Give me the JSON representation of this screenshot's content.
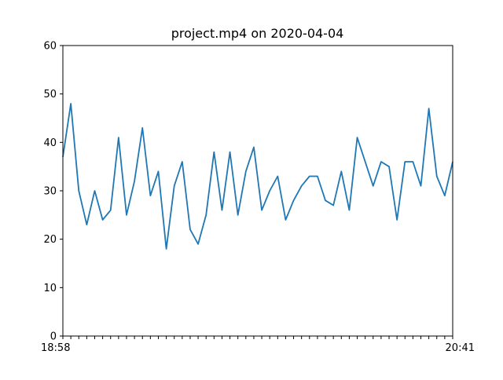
{
  "chart_data": {
    "type": "line",
    "title": "project.mp4 on 2020-04-04",
    "xlabel": "",
    "ylabel": "",
    "ylim": [
      0,
      60
    ],
    "yticks": [
      0,
      10,
      20,
      30,
      40,
      50,
      60
    ],
    "grid": false,
    "x_tick_labels_note": "overlapping time labels; first reads 18:58, last reads 20:41",
    "x_first_label": "18:58",
    "x_last_label": "20:41",
    "series": [
      {
        "color": "#1f77b4",
        "values": [
          37,
          48,
          30,
          23,
          30,
          24,
          26,
          41,
          25,
          32,
          43,
          29,
          34,
          18,
          31,
          36,
          22,
          19,
          25,
          38,
          26,
          38,
          25,
          34,
          39,
          26,
          30,
          33,
          24,
          28,
          31,
          33,
          33,
          28,
          27,
          34,
          26,
          41,
          36,
          31,
          36,
          35,
          24,
          36,
          36,
          31,
          47,
          33,
          29,
          36
        ]
      }
    ]
  }
}
